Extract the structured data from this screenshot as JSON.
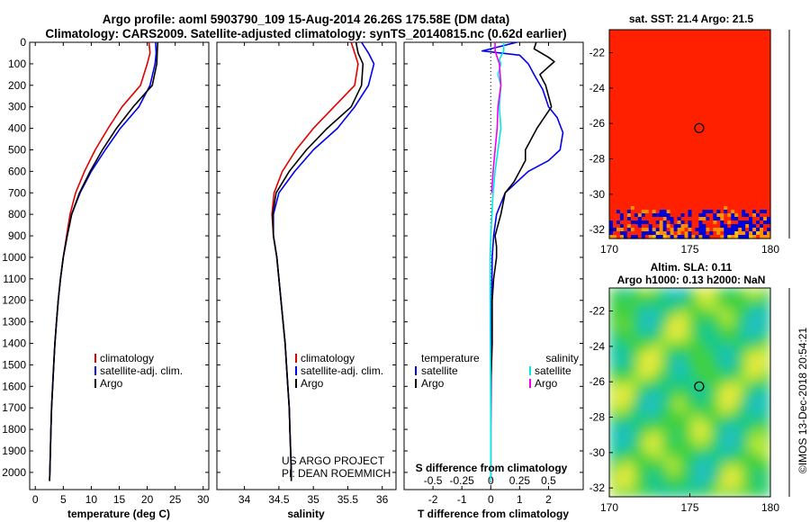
{
  "title": {
    "line1": "Argo profile: aoml 5903790_109 15-Aug-2014 26.26S 175.58E (DM data)",
    "line2": "Climatology: CARS2009. Satellite-adjusted climatology: synTS_20140815.nc (0.62d earlier)"
  },
  "colors": {
    "climatology": "#e00000",
    "satellite": "#0000ee",
    "argo": "#000000",
    "salinity_satellite": "#00e8e8",
    "salinity_argo": "#ee00ee"
  },
  "chart_data": [
    {
      "id": "temperature",
      "type": "line",
      "xlabel": "temperature (deg C)",
      "xlim": [
        -1,
        31
      ],
      "xticks": [
        0,
        5,
        10,
        15,
        20,
        25,
        30
      ],
      "ylim": [
        2080,
        0
      ],
      "yticks": [
        0,
        100,
        200,
        300,
        400,
        500,
        600,
        700,
        800,
        900,
        1000,
        1100,
        1200,
        1300,
        1400,
        1500,
        1600,
        1700,
        1800,
        1900,
        2000
      ],
      "legend": [
        "climatology",
        "satellite-adj. clim.",
        "Argo"
      ],
      "series": [
        {
          "name": "climatology",
          "color": "#e00000",
          "points": [
            [
              20.3,
              0
            ],
            [
              20.5,
              50
            ],
            [
              20.0,
              100
            ],
            [
              18.8,
              200
            ],
            [
              15.5,
              300
            ],
            [
              13.0,
              400
            ],
            [
              10.7,
              500
            ],
            [
              8.8,
              600
            ],
            [
              7.2,
              700
            ],
            [
              6.2,
              800
            ],
            [
              5.6,
              900
            ],
            [
              5.0,
              1000
            ],
            [
              4.5,
              1100
            ],
            [
              4.1,
              1200
            ],
            [
              3.8,
              1300
            ],
            [
              3.5,
              1400
            ],
            [
              3.3,
              1500
            ],
            [
              3.1,
              1600
            ],
            [
              2.9,
              1700
            ],
            [
              2.8,
              1800
            ],
            [
              2.7,
              1900
            ],
            [
              2.6,
              2000
            ],
            [
              2.55,
              2040
            ]
          ]
        },
        {
          "name": "satellite-adj. clim.",
          "color": "#0000ee",
          "points": [
            [
              21.5,
              0
            ],
            [
              21.6,
              50
            ],
            [
              21.4,
              100
            ],
            [
              20.5,
              200
            ],
            [
              18.5,
              300
            ],
            [
              15.2,
              400
            ],
            [
              12.5,
              500
            ],
            [
              10.0,
              600
            ],
            [
              8.0,
              700
            ],
            [
              6.5,
              800
            ],
            [
              5.7,
              900
            ],
            [
              5.0,
              1000
            ],
            [
              4.5,
              1100
            ],
            [
              4.1,
              1200
            ],
            [
              3.8,
              1300
            ],
            [
              3.5,
              1400
            ],
            [
              3.3,
              1500
            ],
            [
              3.1,
              1600
            ],
            [
              2.9,
              1700
            ],
            [
              2.8,
              1800
            ],
            [
              2.7,
              1900
            ],
            [
              2.6,
              2000
            ],
            [
              2.55,
              2040
            ]
          ]
        },
        {
          "name": "Argo",
          "color": "#000000",
          "points": [
            [
              21.9,
              -10
            ],
            [
              21.8,
              40
            ],
            [
              21.7,
              100
            ],
            [
              20.9,
              200
            ],
            [
              17.5,
              300
            ],
            [
              14.5,
              400
            ],
            [
              12.0,
              500
            ],
            [
              9.8,
              600
            ],
            [
              7.9,
              700
            ],
            [
              6.5,
              800
            ],
            [
              5.7,
              900
            ],
            [
              5.0,
              1000
            ],
            [
              4.5,
              1100
            ],
            [
              4.1,
              1200
            ],
            [
              3.8,
              1300
            ],
            [
              3.5,
              1400
            ],
            [
              3.3,
              1500
            ],
            [
              3.1,
              1600
            ],
            [
              2.9,
              1700
            ],
            [
              2.8,
              1800
            ],
            [
              2.7,
              1900
            ],
            [
              2.6,
              2000
            ],
            [
              2.55,
              2040
            ]
          ]
        }
      ]
    },
    {
      "id": "salinity",
      "type": "line",
      "xlabel": "salinity",
      "xlim": [
        33.6,
        36.2
      ],
      "xticks": [
        34,
        34.5,
        35,
        35.5,
        36
      ],
      "ylim": [
        2080,
        0
      ],
      "legend": [
        "climatology",
        "satellite-adj. clim.",
        "Argo"
      ],
      "credit": [
        "US ARGO PROJECT",
        "PI: DEAN ROEMMICH"
      ],
      "series": [
        {
          "name": "climatology",
          "color": "#e00000",
          "points": [
            [
              35.55,
              0
            ],
            [
              35.6,
              50
            ],
            [
              35.65,
              100
            ],
            [
              35.6,
              200
            ],
            [
              35.3,
              300
            ],
            [
              35.0,
              400
            ],
            [
              34.75,
              500
            ],
            [
              34.55,
              600
            ],
            [
              34.43,
              700
            ],
            [
              34.4,
              800
            ],
            [
              34.42,
              900
            ],
            [
              34.47,
              1000
            ],
            [
              34.5,
              1100
            ],
            [
              34.53,
              1200
            ],
            [
              34.56,
              1300
            ],
            [
              34.59,
              1400
            ],
            [
              34.61,
              1500
            ],
            [
              34.63,
              1600
            ],
            [
              34.65,
              1700
            ],
            [
              34.66,
              1800
            ],
            [
              34.67,
              1900
            ],
            [
              34.68,
              2000
            ],
            [
              34.68,
              2040
            ]
          ]
        },
        {
          "name": "satellite-adj. clim.",
          "color": "#0000ee",
          "points": [
            [
              35.7,
              0
            ],
            [
              35.8,
              50
            ],
            [
              35.88,
              100
            ],
            [
              35.8,
              200
            ],
            [
              35.6,
              300
            ],
            [
              35.35,
              400
            ],
            [
              35.0,
              500
            ],
            [
              34.73,
              600
            ],
            [
              34.5,
              700
            ],
            [
              34.42,
              800
            ],
            [
              34.42,
              900
            ],
            [
              34.47,
              1000
            ],
            [
              34.5,
              1100
            ],
            [
              34.53,
              1200
            ],
            [
              34.56,
              1300
            ],
            [
              34.59,
              1400
            ],
            [
              34.61,
              1500
            ],
            [
              34.63,
              1600
            ],
            [
              34.65,
              1700
            ],
            [
              34.66,
              1800
            ],
            [
              34.67,
              1900
            ],
            [
              34.68,
              2000
            ],
            [
              34.68,
              2040
            ]
          ]
        },
        {
          "name": "Argo",
          "color": "#000000",
          "points": [
            [
              35.62,
              0
            ],
            [
              35.65,
              50
            ],
            [
              35.72,
              100
            ],
            [
              35.7,
              200
            ],
            [
              35.55,
              300
            ],
            [
              35.2,
              400
            ],
            [
              34.9,
              500
            ],
            [
              34.65,
              600
            ],
            [
              34.46,
              700
            ],
            [
              34.41,
              800
            ],
            [
              34.42,
              900
            ],
            [
              34.47,
              1000
            ],
            [
              34.5,
              1100
            ],
            [
              34.53,
              1200
            ],
            [
              34.56,
              1300
            ],
            [
              34.59,
              1400
            ],
            [
              34.61,
              1500
            ],
            [
              34.63,
              1600
            ],
            [
              34.65,
              1700
            ],
            [
              34.66,
              1800
            ],
            [
              34.67,
              1900
            ],
            [
              34.68,
              2000
            ],
            [
              34.68,
              2040
            ]
          ]
        }
      ]
    },
    {
      "id": "differences",
      "type": "line",
      "xlabel": "T difference from climatology",
      "xlim": [
        -3,
        3.2
      ],
      "xticks": [
        -2,
        -1,
        0,
        1,
        2
      ],
      "top_axis_label": "S difference from climatology",
      "top_xticks": [
        "-0.5",
        "-0.25",
        "0",
        "0.25",
        "0.5"
      ],
      "ylim": [
        2080,
        0
      ],
      "legend": {
        "temperature_title": "temperature",
        "salinity_title": "salinity",
        "temperature": [
          "satellite",
          "Argo"
        ],
        "salinity": [
          "satellite",
          "Argo"
        ]
      },
      "series": [
        {
          "name": "temperature satellite",
          "color": "#0000ee",
          "points": [
            [
              1.2,
              -10
            ],
            [
              -0.3,
              40
            ],
            [
              1.0,
              60
            ],
            [
              1.3,
              100
            ],
            [
              1.5,
              150
            ],
            [
              1.8,
              220
            ],
            [
              2.0,
              300
            ],
            [
              2.3,
              350
            ],
            [
              2.5,
              420
            ],
            [
              2.4,
              500
            ],
            [
              2.0,
              550
            ],
            [
              1.3,
              600
            ],
            [
              0.9,
              650
            ],
            [
              0.5,
              700
            ],
            [
              0.35,
              750
            ],
            [
              0.2,
              800
            ],
            [
              0.1,
              900
            ],
            [
              0.05,
              1000
            ],
            [
              0.03,
              1200
            ],
            [
              0.02,
              1500
            ],
            [
              0.0,
              1800
            ],
            [
              0.0,
              2040
            ]
          ]
        },
        {
          "name": "temperature Argo",
          "color": "#000000",
          "points": [
            [
              1.6,
              -10
            ],
            [
              1.5,
              30
            ],
            [
              2.0,
              70
            ],
            [
              2.2,
              90
            ],
            [
              1.7,
              150
            ],
            [
              1.9,
              200
            ],
            [
              2.1,
              300
            ],
            [
              1.6,
              400
            ],
            [
              1.2,
              500
            ],
            [
              1.2,
              550
            ],
            [
              0.8,
              650
            ],
            [
              0.5,
              700
            ],
            [
              0.35,
              800
            ],
            [
              0.15,
              900
            ],
            [
              0.2,
              950
            ],
            [
              0.2,
              1000
            ],
            [
              0.1,
              1100
            ],
            [
              0.05,
              1200
            ],
            [
              0.05,
              1400
            ],
            [
              0.0,
              1600
            ],
            [
              0.0,
              2040
            ]
          ]
        },
        {
          "name": "salinity satellite",
          "color": "#00e8e8",
          "points": [
            [
              0.45,
              0
            ],
            [
              0.45,
              40
            ],
            [
              0.3,
              80
            ],
            [
              0.35,
              100
            ],
            [
              0.25,
              150
            ],
            [
              0.35,
              200
            ],
            [
              0.3,
              300
            ],
            [
              0.35,
              400
            ],
            [
              0.25,
              500
            ],
            [
              0.15,
              600
            ],
            [
              0.08,
              700
            ],
            [
              0.04,
              800
            ],
            [
              0.0,
              900
            ],
            [
              -0.02,
              1000
            ],
            [
              -0.02,
              1200
            ],
            [
              -0.01,
              1500
            ],
            [
              0.0,
              1800
            ],
            [
              0.0,
              2040
            ]
          ]
        },
        {
          "name": "salinity Argo",
          "color": "#ee00ee",
          "points": [
            [
              0.15,
              0
            ],
            [
              0.15,
              40
            ],
            [
              0.3,
              100
            ],
            [
              0.35,
              200
            ],
            [
              0.25,
              300
            ],
            [
              0.22,
              400
            ],
            [
              0.15,
              500
            ],
            [
              0.08,
              600
            ],
            [
              0.03,
              700
            ]
          ]
        }
      ]
    },
    {
      "id": "sst_map",
      "type": "heatmap",
      "title": "sat. SST: 21.4 Argo: 21.5",
      "xlim": [
        170,
        180
      ],
      "xticks": [
        170,
        175,
        180
      ],
      "ylim": [
        -32.5,
        -20.7
      ],
      "yticks": [
        -22,
        -24,
        -26,
        -28,
        -30,
        -32
      ],
      "float_position": [
        175.58,
        -26.26
      ]
    },
    {
      "id": "sla_map",
      "type": "heatmap",
      "title": "Altim. SLA: 0.11",
      "subtitle": "Argo h1000: 0.13 h2000: NaN",
      "xlim": [
        170,
        180
      ],
      "xticks": [
        170,
        175,
        180
      ],
      "ylim": [
        -32.5,
        -20.7
      ],
      "yticks": [
        -22,
        -24,
        -26,
        -28,
        -30,
        -32
      ],
      "float_position": [
        175.58,
        -26.26
      ]
    }
  ],
  "watermark": "©IMOS 13-Dec-2018 20:54:21"
}
